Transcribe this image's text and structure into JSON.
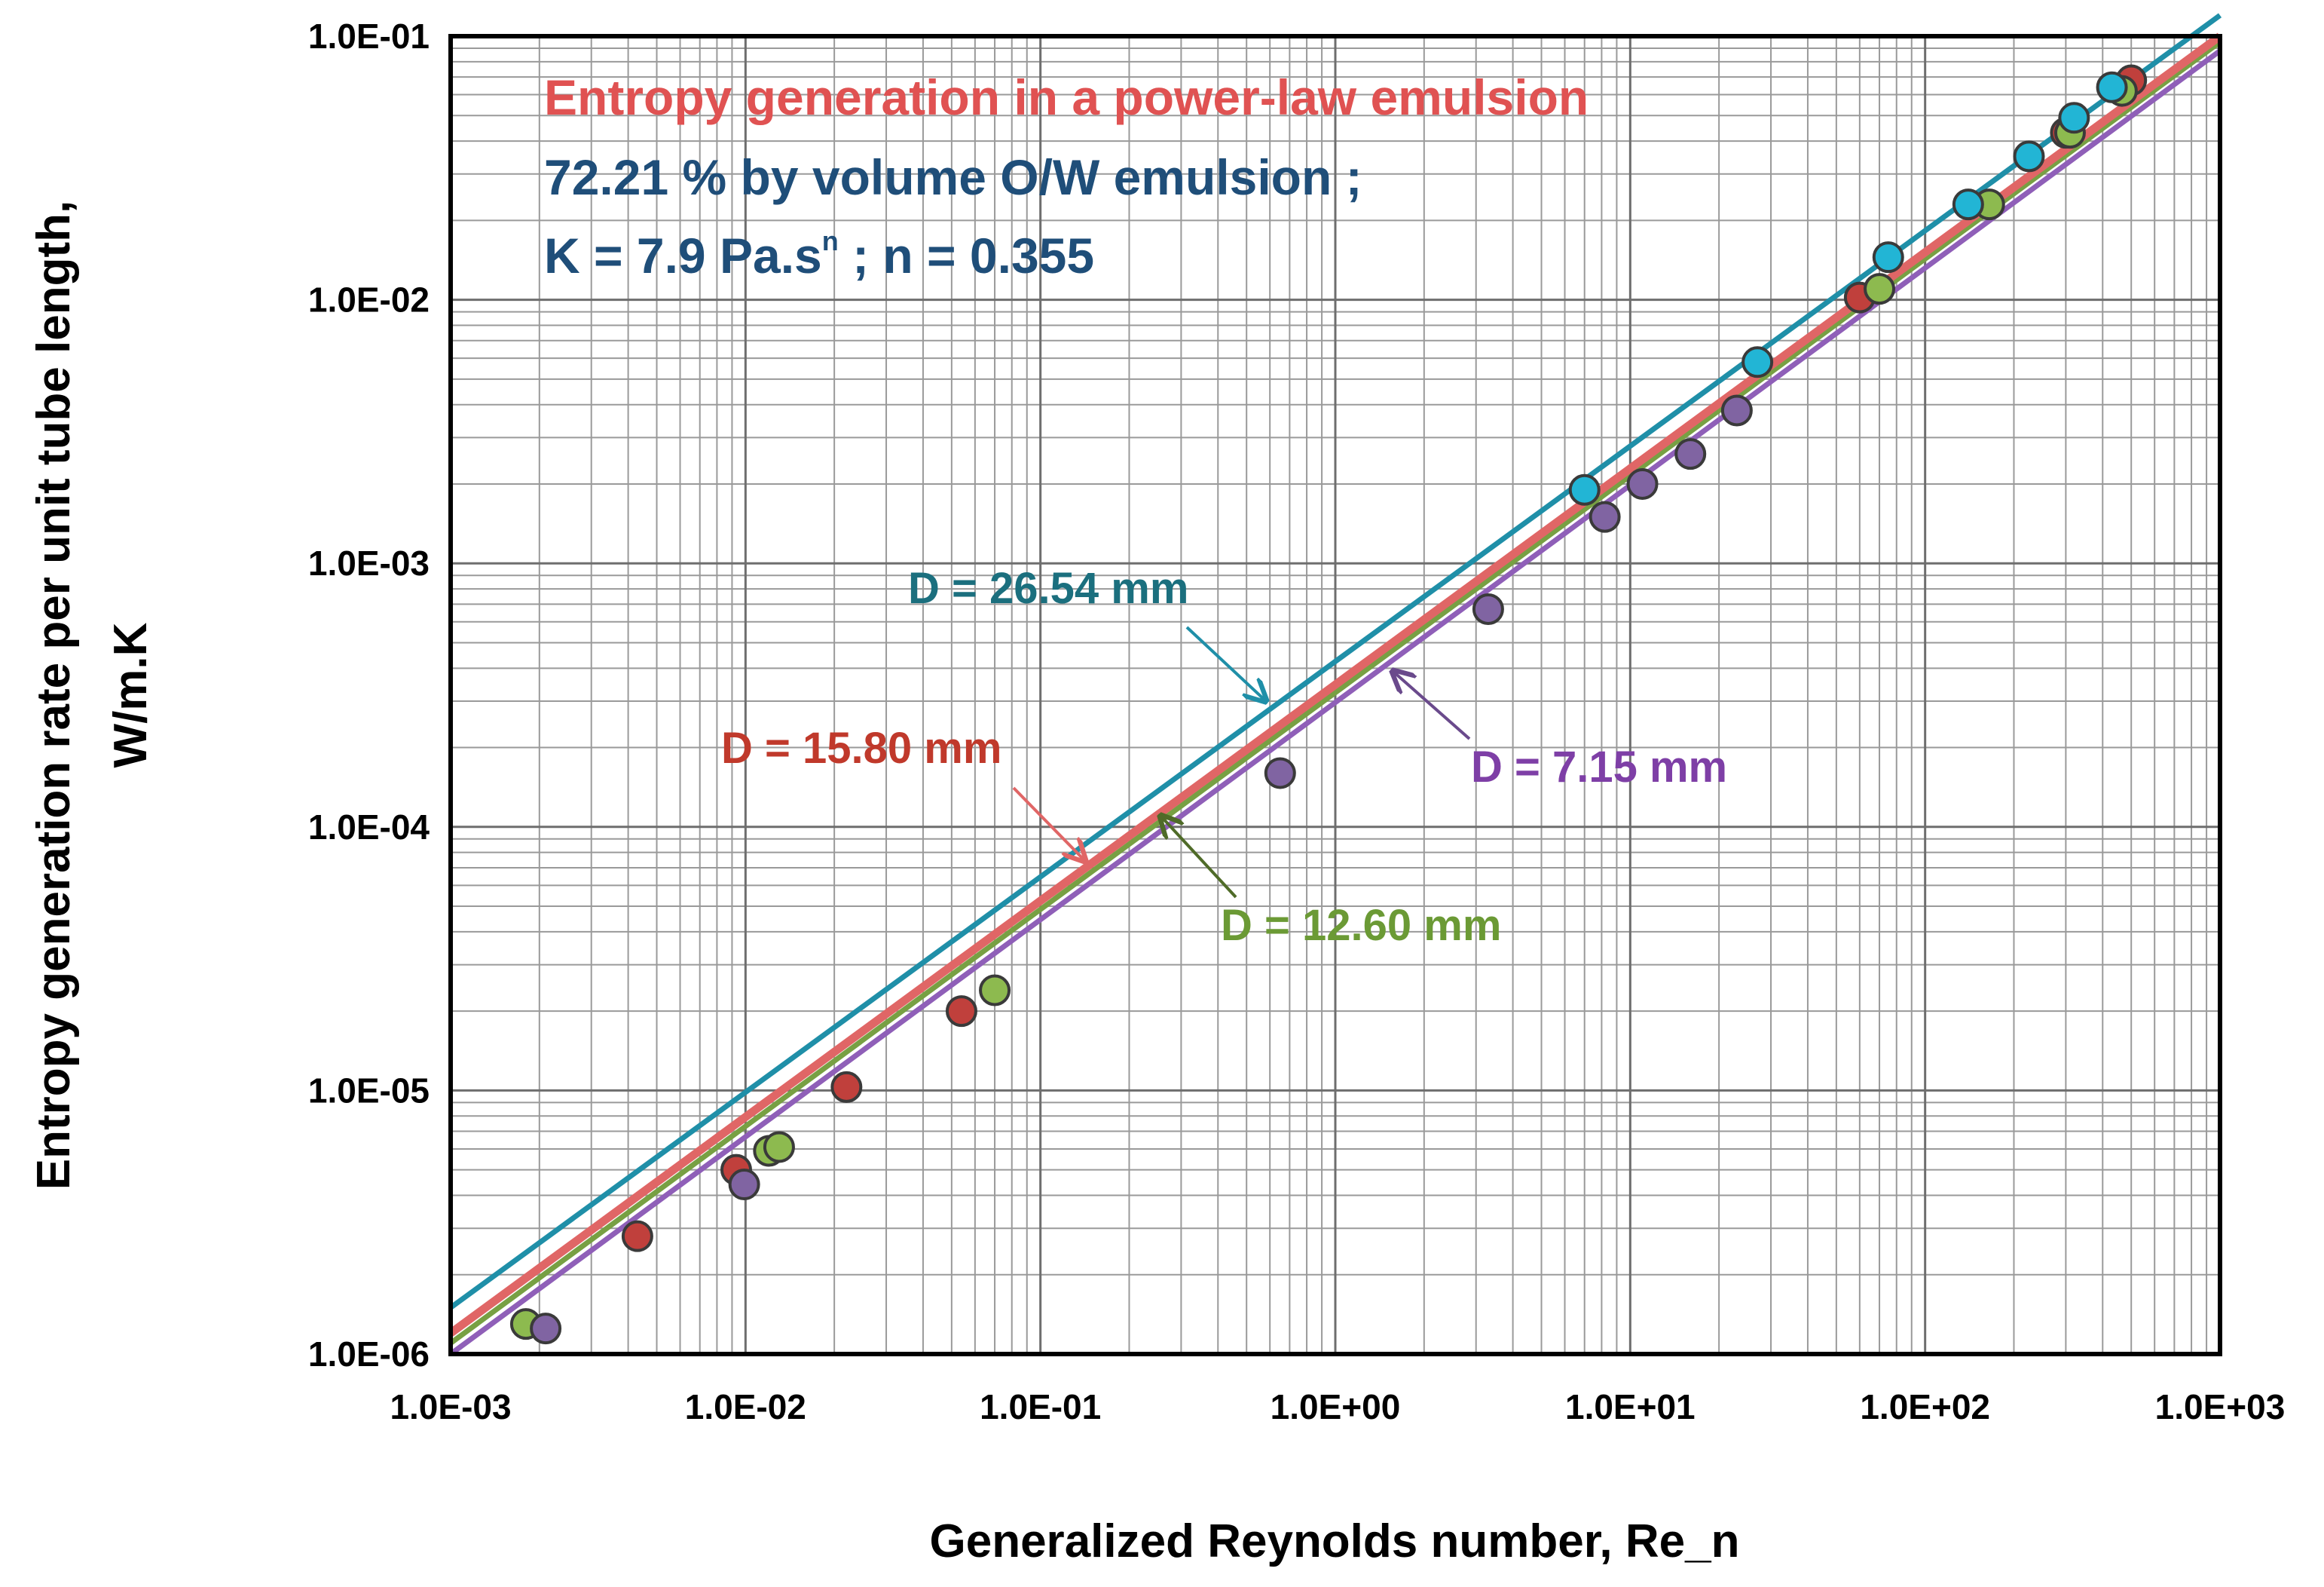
{
  "chart_data": {
    "type": "scatter",
    "scale": "log-log",
    "xlim": [
      0.001,
      1000
    ],
    "ylim": [
      1e-06,
      0.1
    ],
    "grid": true,
    "xlabel": "Generalized Reynolds number, Re_n",
    "ylabel_line1": "Entropy generation rate per unit tube length,",
    "ylabel_line2": "W/m.K",
    "x_tick_labels": [
      "1.0E-03",
      "1.0E-02",
      "1.0E-01",
      "1.0E+00",
      "1.0E+01",
      "1.0E+02",
      "1.0E+03"
    ],
    "y_tick_labels": [
      "1.0E-06",
      "1.0E-05",
      "1.0E-04",
      "1.0E-03",
      "1.0E-02",
      "1.0E-01"
    ],
    "title_lines": {
      "line1": "Entropy generation in a power-law emulsion",
      "line2": "72.21 % by volume  O/W emulsion ;",
      "line3_a": "K = 7.9 Pa.s",
      "line3_sup": "n",
      "line3_b": "  ; n = 0.355"
    },
    "colors": {
      "title_red": "#E05252",
      "title_blue": "#1F4E79",
      "D26": "#1F8FA8",
      "D15": "#E06666",
      "D12": "#77A043",
      "D7": "#8F5FB8",
      "D26_label": "#1B6F7E",
      "D15_label": "#C0392B",
      "D12_label": "#6B9A35",
      "D7_label": "#7E3FA6"
    },
    "series": [
      {
        "name": "D = 26.54 mm",
        "fill": "#22B5D5",
        "line_fit": {
          "x": [
            0.001,
            1000
          ],
          "y": [
            1.5e-06,
            0.12
          ]
        },
        "points": [
          [
            7,
            0.0019
          ],
          [
            27,
            0.0058
          ],
          [
            75,
            0.0145
          ],
          [
            140,
            0.023
          ],
          [
            225,
            0.035
          ],
          [
            320,
            0.049
          ],
          [
            430,
            0.064
          ]
        ]
      },
      {
        "name": "D = 15.80 mm",
        "fill": "#C0403C",
        "line_fit": {
          "x": [
            0.001,
            1000
          ],
          "y": [
            1.2e-06,
            0.1
          ]
        },
        "points": [
          [
            0.0043,
            2.8e-06
          ],
          [
            0.0093,
            5e-06
          ],
          [
            0.022,
            1.03e-05
          ],
          [
            0.054,
            2e-05
          ],
          [
            60,
            0.0102
          ],
          [
            300,
            0.043
          ],
          [
            500,
            0.068
          ]
        ]
      },
      {
        "name": "D = 12.60 mm",
        "fill": "#8DBA4F",
        "line_fit": {
          "x": [
            0.001,
            1000
          ],
          "y": [
            1.1e-06,
            0.095
          ]
        },
        "points": [
          [
            0.0018,
            1.3e-06
          ],
          [
            0.012,
            5.9e-06
          ],
          [
            0.013,
            6.1e-06
          ],
          [
            0.07,
            2.4e-05
          ],
          [
            70,
            0.011
          ],
          [
            165,
            0.023
          ],
          [
            310,
            0.043
          ],
          [
            465,
            0.062
          ]
        ]
      },
      {
        "name": "D = 7.15 mm",
        "fill": "#8064A2",
        "line_fit": {
          "x": [
            0.001,
            1000
          ],
          "y": [
            1e-06,
            0.088
          ]
        },
        "points": [
          [
            0.0021,
            1.25e-06
          ],
          [
            0.0099,
            4.4e-06
          ],
          [
            0.65,
            0.00016
          ],
          [
            3.3,
            0.00067
          ],
          [
            8.2,
            0.0015
          ],
          [
            11,
            0.002
          ],
          [
            16,
            0.0026
          ],
          [
            23,
            0.0038
          ]
        ]
      }
    ],
    "annotations": [
      {
        "id": "D26",
        "label": "D = 26.54 mm",
        "arrow_to": [
          0.6,
          0.0003
        ]
      },
      {
        "id": "D15",
        "label": "D = 15.80 mm",
        "arrow_to": [
          0.15,
          7.3e-05
        ]
      },
      {
        "id": "D12",
        "label": "D = 12.60 mm",
        "arrow_to": [
          0.26,
          0.00011
        ]
      },
      {
        "id": "D7",
        "label": "D = 7.15 mm",
        "arrow_to": [
          1.65,
          0.00041
        ]
      }
    ]
  }
}
